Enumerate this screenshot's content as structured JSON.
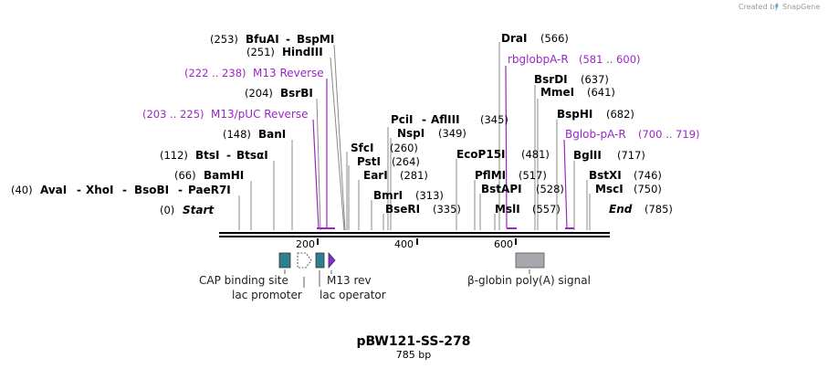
{
  "credit": {
    "prefix": "Created by",
    "brand": "SnapGene"
  },
  "map": {
    "title": "pBW121-SS-278",
    "length_label": "785 bp",
    "length": 785
  },
  "ends": {
    "start_label": "Start",
    "start_pos": "(0)",
    "end_label": "End",
    "end_pos": "(785)"
  },
  "ticks": [
    "200",
    "400",
    "600"
  ],
  "sites": [
    {
      "pos": "(253)",
      "names": [
        "BfuAI",
        "BspMI"
      ]
    },
    {
      "pos": "(251)",
      "names": [
        "HindIII"
      ]
    },
    {
      "pos": "(204)",
      "names": [
        "BsrBI"
      ]
    },
    {
      "pos": "(148)",
      "names": [
        "BanI"
      ]
    },
    {
      "pos": "(112)",
      "names": [
        "BtsI",
        "BtsαI"
      ]
    },
    {
      "pos": "(66)",
      "names": [
        "BamHI"
      ]
    },
    {
      "pos": "(40)",
      "names": [
        "AvaI",
        "XhoI",
        "BsoBI",
        "PaeR7I"
      ]
    },
    {
      "pos": "(260)",
      "names": [
        "SfcI"
      ]
    },
    {
      "pos": "(264)",
      "names": [
        "PstI"
      ]
    },
    {
      "pos": "(281)",
      "names": [
        "EarI"
      ]
    },
    {
      "pos": "(313)",
      "names": [
        "BmrI"
      ]
    },
    {
      "pos": "(335)",
      "names": [
        "BseRI"
      ]
    },
    {
      "pos": "(345)",
      "names": [
        "PciI",
        "AflIII"
      ]
    },
    {
      "pos": "(349)",
      "names": [
        "NspI"
      ]
    },
    {
      "pos": "(481)",
      "names": [
        "EcoP15I"
      ]
    },
    {
      "pos": "(517)",
      "names": [
        "PflMI"
      ]
    },
    {
      "pos": "(528)",
      "names": [
        "BstAPI"
      ]
    },
    {
      "pos": "(557)",
      "names": [
        "MslI"
      ]
    },
    {
      "pos": "(566)",
      "names": [
        "DraI"
      ]
    },
    {
      "pos": "(637)",
      "names": [
        "BsrDI"
      ]
    },
    {
      "pos": "(641)",
      "names": [
        "MmeI"
      ]
    },
    {
      "pos": "(682)",
      "names": [
        "BspHI"
      ]
    },
    {
      "pos": "(717)",
      "names": [
        "BglII"
      ]
    },
    {
      "pos": "(746)",
      "names": [
        "BstXI"
      ]
    },
    {
      "pos": "(750)",
      "names": [
        "MscI"
      ]
    }
  ],
  "primers": [
    {
      "range": "(222 .. 238)",
      "name": "M13 Reverse"
    },
    {
      "range": "(203 .. 225)",
      "name": "M13/pUC Reverse"
    },
    {
      "range": "(581 .. 600)",
      "name": "rbglobpA-R"
    },
    {
      "range": "(700 .. 719)",
      "name": "Bglob-pA-R"
    }
  ],
  "features": [
    {
      "label": "CAP binding site",
      "color": "#2e7f8f"
    },
    {
      "label": "lac promoter",
      "color": "#ffffff"
    },
    {
      "label": "lac operator",
      "color": "#2e7f8f"
    },
    {
      "label": "M13 rev",
      "color": "#8a2be2"
    },
    {
      "label": "β-globin poly(A) signal",
      "color": "#a6a8ad"
    }
  ],
  "colors": {
    "primer": "#9b26c7",
    "backbone": "#000000"
  }
}
